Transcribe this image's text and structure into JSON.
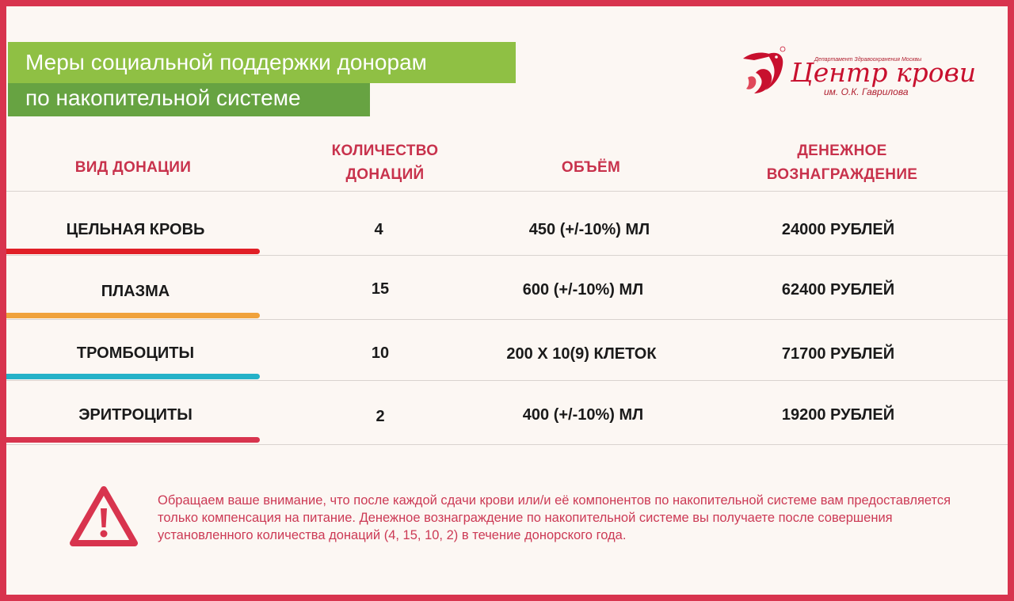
{
  "title": {
    "line1": "Меры социальной поддержки донорам",
    "line2": "по накопительной системе"
  },
  "logo": {
    "tagline": "Департамент Здравоохранения Москвы",
    "name": "Центр крови",
    "subtitle": "им. О.К. Гаврилова",
    "icon": "pelican-icon",
    "color": "#c8102e"
  },
  "table": {
    "headers": {
      "type": "ВИД ДОНАЦИИ",
      "count_line1": "КОЛИЧЕСТВО",
      "count_line2": "ДОНАЦИЙ",
      "volume": "ОБЪЁМ",
      "reward_line1": "ДЕНЕЖНОЕ",
      "reward_line2": "ВОЗНАГРАЖДЕНИЕ"
    },
    "rows": [
      {
        "type": "ЦЕЛЬНАЯ КРОВЬ",
        "count": "4",
        "volume": "450 (+/-10%) МЛ",
        "reward": "24000 РУБЛЕЙ",
        "accent": "#e11f26"
      },
      {
        "type": "ПЛАЗМА",
        "count": "15",
        "volume": "600 (+/-10%) МЛ",
        "reward": "62400 РУБЛЕЙ",
        "accent": "#f0a23c"
      },
      {
        "type": "ТРОМБОЦИТЫ",
        "count": "10",
        "volume": "200 X 10(9) КЛЕТОК",
        "reward": "71700 РУБЛЕЙ",
        "accent": "#25b2c8"
      },
      {
        "type": "ЭРИТРОЦИТЫ",
        "count": "2",
        "volume": "400 (+/-10%) МЛ",
        "reward": "19200 РУБЛЕЙ",
        "accent": "#d8344e"
      }
    ]
  },
  "notice": {
    "icon": "warning-icon",
    "text": "Обращаем ваше внимание, что после каждой  сдачи крови или/и её компонентов по накопительной системе вам предоставляется только компенсация на питание. Денежное вознаграждение по накопительной системе вы получаете после совершения установленного количества донаций (4, 15, 10, 2) в течение донорского года."
  },
  "colors": {
    "frame": "#d8344e",
    "header_text": "#c8324c",
    "title_green_light": "#8fc044",
    "title_green_dark": "#67a342"
  }
}
